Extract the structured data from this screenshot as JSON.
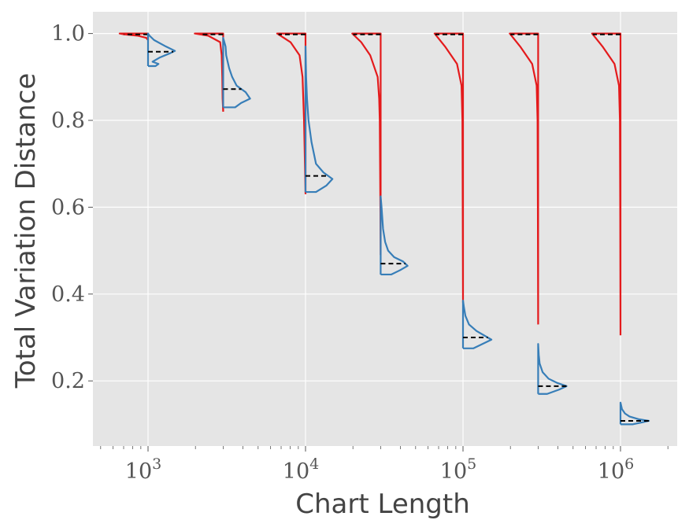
{
  "chart_data": {
    "type": "violin",
    "xlabel": "Chart Length",
    "ylabel": "Total Variation Distance",
    "x_scale": "log",
    "xlim": [
      500,
      2000000
    ],
    "ylim": [
      0.05,
      1.05
    ],
    "grid": true,
    "x_ticks": [
      {
        "value": 1000,
        "base": "10",
        "exp": "3"
      },
      {
        "value": 10000,
        "base": "10",
        "exp": "4"
      },
      {
        "value": 100000,
        "base": "10",
        "exp": "5"
      },
      {
        "value": 1000000,
        "base": "10",
        "exp": "6"
      }
    ],
    "y_ticks": [
      {
        "value": 0.2,
        "label": "0.2"
      },
      {
        "value": 0.4,
        "label": "0.4"
      },
      {
        "value": 0.6,
        "label": "0.6"
      },
      {
        "value": 0.8,
        "label": "0.8"
      },
      {
        "value": 1.0,
        "label": "1.0"
      }
    ],
    "colors": {
      "left": "#e41a1c",
      "right": "#377eb8",
      "median": "#000000",
      "background": "#e5e5e5",
      "grid": "#ffffff"
    },
    "violins": [
      {
        "chain_length": 1000,
        "left": {
          "min": 0.985,
          "max": 1.0,
          "median": 0.998,
          "profile": [
            [
              0.985,
              0.0
            ],
            [
              0.99,
              0.06
            ],
            [
              0.995,
              0.35
            ],
            [
              0.998,
              0.8
            ],
            [
              1.0,
              0.95
            ]
          ]
        },
        "right": {
          "min": 0.925,
          "max": 1.0,
          "median": 0.958,
          "profile": [
            [
              0.925,
              0.25
            ],
            [
              0.93,
              0.35
            ],
            [
              0.935,
              0.15
            ],
            [
              0.945,
              0.4
            ],
            [
              0.955,
              0.75
            ],
            [
              0.96,
              0.9
            ],
            [
              0.97,
              0.6
            ],
            [
              0.985,
              0.2
            ],
            [
              0.995,
              0.05
            ],
            [
              1.0,
              0.0
            ]
          ]
        }
      },
      {
        "chain_length": 3000,
        "left": {
          "min": 0.82,
          "max": 1.0,
          "median": 0.998,
          "profile": [
            [
              0.82,
              0.0
            ],
            [
              0.85,
              0.02
            ],
            [
              0.9,
              0.03
            ],
            [
              0.95,
              0.05
            ],
            [
              0.98,
              0.1
            ],
            [
              0.995,
              0.5
            ],
            [
              1.0,
              0.95
            ]
          ]
        },
        "right": {
          "min": 0.83,
          "max": 0.99,
          "median": 0.872,
          "profile": [
            [
              0.83,
              0.4
            ],
            [
              0.84,
              0.6
            ],
            [
              0.85,
              0.9
            ],
            [
              0.865,
              0.75
            ],
            [
              0.88,
              0.45
            ],
            [
              0.9,
              0.3
            ],
            [
              0.92,
              0.2
            ],
            [
              0.95,
              0.1
            ],
            [
              0.97,
              0.08
            ],
            [
              0.99,
              0.0
            ]
          ]
        }
      },
      {
        "chain_length": 10000,
        "left": {
          "min": 0.63,
          "max": 1.0,
          "median": 0.998,
          "profile": [
            [
              0.63,
              0.0
            ],
            [
              0.7,
              0.02
            ],
            [
              0.8,
              0.05
            ],
            [
              0.9,
              0.1
            ],
            [
              0.95,
              0.2
            ],
            [
              0.98,
              0.5
            ],
            [
              1.0,
              0.95
            ]
          ]
        },
        "right": {
          "min": 0.635,
          "max": 0.97,
          "median": 0.672,
          "profile": [
            [
              0.635,
              0.35
            ],
            [
              0.65,
              0.7
            ],
            [
              0.665,
              0.9
            ],
            [
              0.68,
              0.6
            ],
            [
              0.7,
              0.35
            ],
            [
              0.75,
              0.2
            ],
            [
              0.8,
              0.1
            ],
            [
              0.85,
              0.05
            ],
            [
              0.9,
              0.02
            ],
            [
              0.97,
              0.0
            ]
          ]
        }
      },
      {
        "chain_length": 30000,
        "left": {
          "min": 0.49,
          "max": 1.0,
          "median": 0.998,
          "profile": [
            [
              0.49,
              0.0
            ],
            [
              0.6,
              0.01
            ],
            [
              0.7,
              0.02
            ],
            [
              0.8,
              0.03
            ],
            [
              0.85,
              0.05
            ],
            [
              0.9,
              0.1
            ],
            [
              0.95,
              0.35
            ],
            [
              0.98,
              0.65
            ],
            [
              1.0,
              0.95
            ]
          ]
        },
        "right": {
          "min": 0.445,
          "max": 0.625,
          "median": 0.47,
          "profile": [
            [
              0.445,
              0.35
            ],
            [
              0.455,
              0.65
            ],
            [
              0.465,
              0.9
            ],
            [
              0.475,
              0.75
            ],
            [
              0.485,
              0.45
            ],
            [
              0.5,
              0.25
            ],
            [
              0.52,
              0.15
            ],
            [
              0.55,
              0.08
            ],
            [
              0.6,
              0.03
            ],
            [
              0.625,
              0.0
            ]
          ]
        }
      },
      {
        "chain_length": 100000,
        "left": {
          "min": 0.38,
          "max": 1.0,
          "median": 0.998,
          "profile": [
            [
              0.38,
              0.0
            ],
            [
              0.6,
              0.01
            ],
            [
              0.8,
              0.02
            ],
            [
              0.88,
              0.05
            ],
            [
              0.93,
              0.2
            ],
            [
              0.97,
              0.6
            ],
            [
              1.0,
              0.95
            ]
          ]
        },
        "right": {
          "min": 0.275,
          "max": 0.385,
          "median": 0.3,
          "profile": [
            [
              0.275,
              0.35
            ],
            [
              0.285,
              0.65
            ],
            [
              0.295,
              0.95
            ],
            [
              0.305,
              0.7
            ],
            [
              0.315,
              0.45
            ],
            [
              0.33,
              0.2
            ],
            [
              0.35,
              0.08
            ],
            [
              0.37,
              0.03
            ],
            [
              0.385,
              0.0
            ]
          ]
        }
      },
      {
        "chain_length": 300000,
        "left": {
          "min": 0.33,
          "max": 1.0,
          "median": 0.998,
          "profile": [
            [
              0.33,
              0.0
            ],
            [
              0.6,
              0.01
            ],
            [
              0.8,
              0.02
            ],
            [
              0.88,
              0.05
            ],
            [
              0.93,
              0.2
            ],
            [
              0.97,
              0.6
            ],
            [
              1.0,
              0.95
            ]
          ]
        },
        "right": {
          "min": 0.17,
          "max": 0.285,
          "median": 0.188,
          "profile": [
            [
              0.17,
              0.3
            ],
            [
              0.18,
              0.7
            ],
            [
              0.188,
              0.95
            ],
            [
              0.195,
              0.65
            ],
            [
              0.205,
              0.35
            ],
            [
              0.22,
              0.15
            ],
            [
              0.24,
              0.05
            ],
            [
              0.26,
              0.02
            ],
            [
              0.285,
              0.0
            ]
          ]
        }
      },
      {
        "chain_length": 1000000,
        "left": {
          "min": 0.305,
          "max": 1.0,
          "median": 0.998,
          "profile": [
            [
              0.305,
              0.0
            ],
            [
              0.6,
              0.01
            ],
            [
              0.8,
              0.02
            ],
            [
              0.88,
              0.05
            ],
            [
              0.93,
              0.2
            ],
            [
              0.97,
              0.6
            ],
            [
              1.0,
              0.95
            ]
          ]
        },
        "right": {
          "min": 0.1,
          "max": 0.15,
          "median": 0.108,
          "profile": [
            [
              0.1,
              0.4
            ],
            [
              0.105,
              0.75
            ],
            [
              0.108,
              0.95
            ],
            [
              0.112,
              0.6
            ],
            [
              0.118,
              0.3
            ],
            [
              0.125,
              0.15
            ],
            [
              0.135,
              0.05
            ],
            [
              0.15,
              0.0
            ]
          ]
        }
      }
    ]
  }
}
